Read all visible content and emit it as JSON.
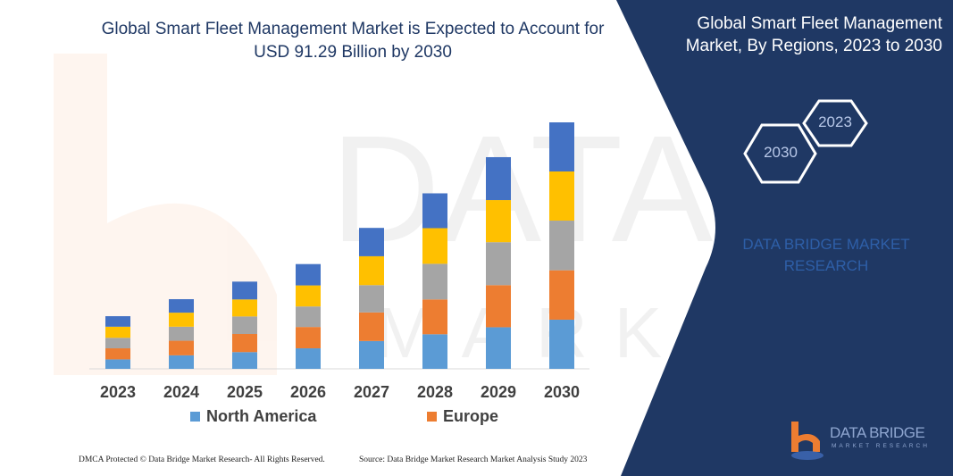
{
  "title": "Global Smart Fleet Management Market is Expected to Account for USD 91.29 Billion by 2030",
  "panel": {
    "title": "Global Smart Fleet Management Market, By Regions, 2023 to 2030",
    "hex_years": [
      "2023",
      "2030"
    ],
    "watermark": "DATA BRIDGE MARKET RESEARCH",
    "logo_title": "DATA BRIDGE",
    "logo_subtitle": "MARKET RESEARCH",
    "background_color": "#1f3864"
  },
  "footer": {
    "copyright": "DMCA Protected © Data Bridge Market Research- All Rights Reserved.",
    "source": "Source: Data Bridge Market Research Market Analysis Study 2023"
  },
  "chart_data": {
    "type": "bar",
    "stacked": true,
    "title": "Global Smart Fleet Management Market is Expected to Account for USD 91.29 Billion by 2030",
    "xlabel": "",
    "ylabel": "",
    "y_axis_visible": false,
    "grid": false,
    "legend_position": "bottom",
    "categories": [
      "2023",
      "2024",
      "2025",
      "2026",
      "2027",
      "2028",
      "2029",
      "2030"
    ],
    "series": [
      {
        "name": "North America",
        "color": "#5b9bd5",
        "values": [
          3.5,
          5.0,
          6.2,
          7.6,
          10.3,
          12.8,
          15.4,
          18.2
        ]
      },
      {
        "name": "Europe",
        "color": "#ed7d31",
        "values": [
          4.1,
          5.4,
          6.7,
          7.9,
          10.6,
          12.9,
          15.6,
          18.3
        ]
      },
      {
        "color": "#a5a5a5",
        "values": [
          3.9,
          5.2,
          6.5,
          7.6,
          10.1,
          13.2,
          15.9,
          18.4
        ]
      },
      {
        "color": "#ffc000",
        "values": [
          4.1,
          5.2,
          6.3,
          7.8,
          10.7,
          13.2,
          15.6,
          18.2
        ]
      },
      {
        "color": "#4472c4",
        "values": [
          3.9,
          5.0,
          6.6,
          7.9,
          10.5,
          12.9,
          15.9,
          18.19
        ]
      }
    ]
  }
}
